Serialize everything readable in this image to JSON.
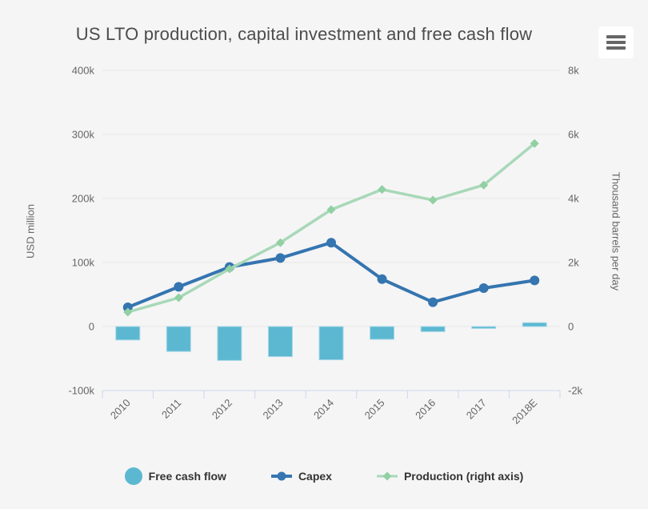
{
  "chart": {
    "title": "US LTO production, capital investment and free cash flow",
    "menu_button": {
      "icon": "hamburger-icon"
    }
  },
  "colors": {
    "background": "#f5f5f6",
    "gridline": "#e6e6e6",
    "axis_line": "#ccd6eb",
    "tick_label": "#666666",
    "axis_title": "#666666",
    "title_text": "#4c4c4c",
    "legend_text": "#333333",
    "free_cash_flow": "#5cb8d1",
    "free_cash_flow_border": "#a8d8e8",
    "capex": "#3575b0",
    "production_line": "#a8d8b8",
    "production_marker": "#91d0a2"
  },
  "chart_data": {
    "type": "combo",
    "title": "US LTO production, capital investment and free cash flow",
    "categories": [
      "2010",
      "2011",
      "2012",
      "2013",
      "2014",
      "2015",
      "2016",
      "2017",
      "2018E"
    ],
    "series": [
      {
        "name": "Free cash flow",
        "type": "bar",
        "axis": "left",
        "color": "#5cb8d1",
        "border_color": "#a8d8e8",
        "values": [
          -21000,
          -39000,
          -53000,
          -47000,
          -52000,
          -20000,
          -8000,
          -3000,
          6000
        ]
      },
      {
        "name": "Capex",
        "type": "line",
        "marker": "circle",
        "axis": "left",
        "color": "#3575b0",
        "values": [
          30000,
          62000,
          93000,
          107000,
          131000,
          74000,
          38000,
          60000,
          72000
        ]
      },
      {
        "name": "Production (right axis)",
        "type": "line",
        "marker": "diamond",
        "axis": "right",
        "color": "#a8d8b8",
        "marker_color": "#91d0a2",
        "values": [
          450,
          900,
          1800,
          2620,
          3650,
          4280,
          3950,
          4420,
          5720
        ]
      }
    ],
    "left_axis": {
      "title": "USD million",
      "min": -100000,
      "max": 400000,
      "ticks": [
        {
          "value": 400000,
          "label": "400k"
        },
        {
          "value": 300000,
          "label": "300k"
        },
        {
          "value": 200000,
          "label": "200k"
        },
        {
          "value": 100000,
          "label": "100k"
        },
        {
          "value": 0,
          "label": "0"
        },
        {
          "value": -100000,
          "label": "-100k"
        }
      ]
    },
    "right_axis": {
      "title": "Thousand barrels per day",
      "min": -2000,
      "max": 8000,
      "ticks": [
        {
          "value": 8000,
          "label": "8k"
        },
        {
          "value": 6000,
          "label": "6k"
        },
        {
          "value": 4000,
          "label": "4k"
        },
        {
          "value": 2000,
          "label": "2k"
        },
        {
          "value": 0,
          "label": "0"
        },
        {
          "value": -2000,
          "label": "-2k"
        }
      ]
    },
    "grid": true,
    "legend_position": "bottom"
  }
}
